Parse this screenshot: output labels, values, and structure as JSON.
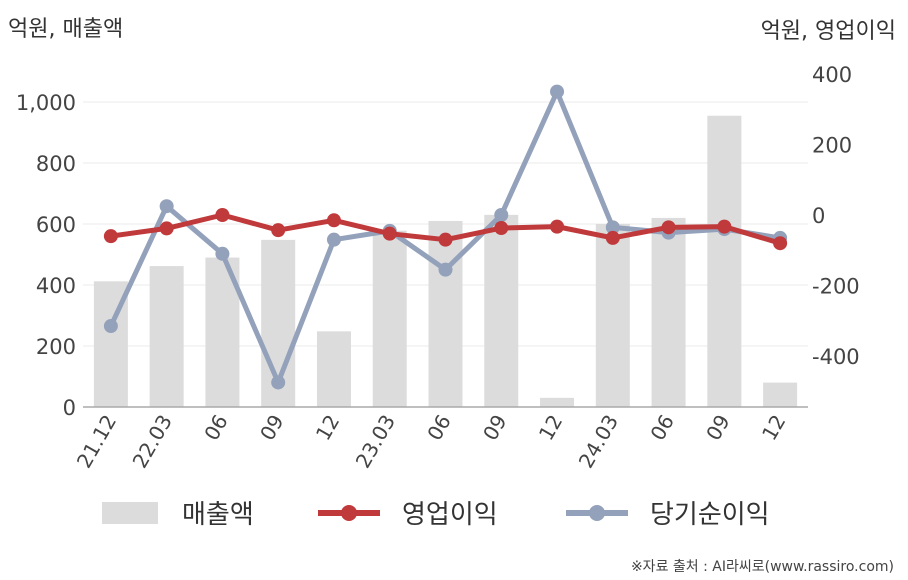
{
  "chart_data": {
    "type": "bar",
    "categories": [
      "21.12",
      "22.03",
      "06",
      "09",
      "12",
      "23.03",
      "06",
      "09",
      "12",
      "24.03",
      "06",
      "09",
      "12"
    ],
    "left_axis": {
      "unit_label": "억원, 매출액",
      "range": [
        0,
        1000
      ],
      "ticks": [
        "0",
        "200",
        "400",
        "600",
        "800",
        "1,000"
      ]
    },
    "right_axis": {
      "unit_label": "억원, 영업이익",
      "range": [
        -500,
        400
      ],
      "ticks": [
        "-400",
        "-200",
        "0",
        "200",
        "400"
      ]
    },
    "series": [
      {
        "name": "매출액",
        "type": "bar",
        "axis": "left",
        "color": "#dcdcdc",
        "values": [
          412,
          462,
          490,
          548,
          248,
          578,
          610,
          630,
          30,
          600,
          620,
          955,
          80
        ]
      },
      {
        "name": "영업이익",
        "type": "line",
        "axis": "right",
        "color": "#c0393b",
        "values": [
          -60,
          -38,
          0,
          -43,
          -15,
          -53,
          -70,
          -37,
          -33,
          -65,
          -35,
          -33,
          -80
        ]
      },
      {
        "name": "당기순이익",
        "type": "line",
        "axis": "right",
        "color": "#93a1bb",
        "values": [
          -315,
          25,
          -110,
          -475,
          -70,
          -45,
          -155,
          0,
          350,
          -35,
          -50,
          -40,
          -65
        ]
      }
    ],
    "grid": true,
    "legend_position": "bottom"
  },
  "source_text": "※자료 출처 : AI라씨로(www.rassiro.com)"
}
